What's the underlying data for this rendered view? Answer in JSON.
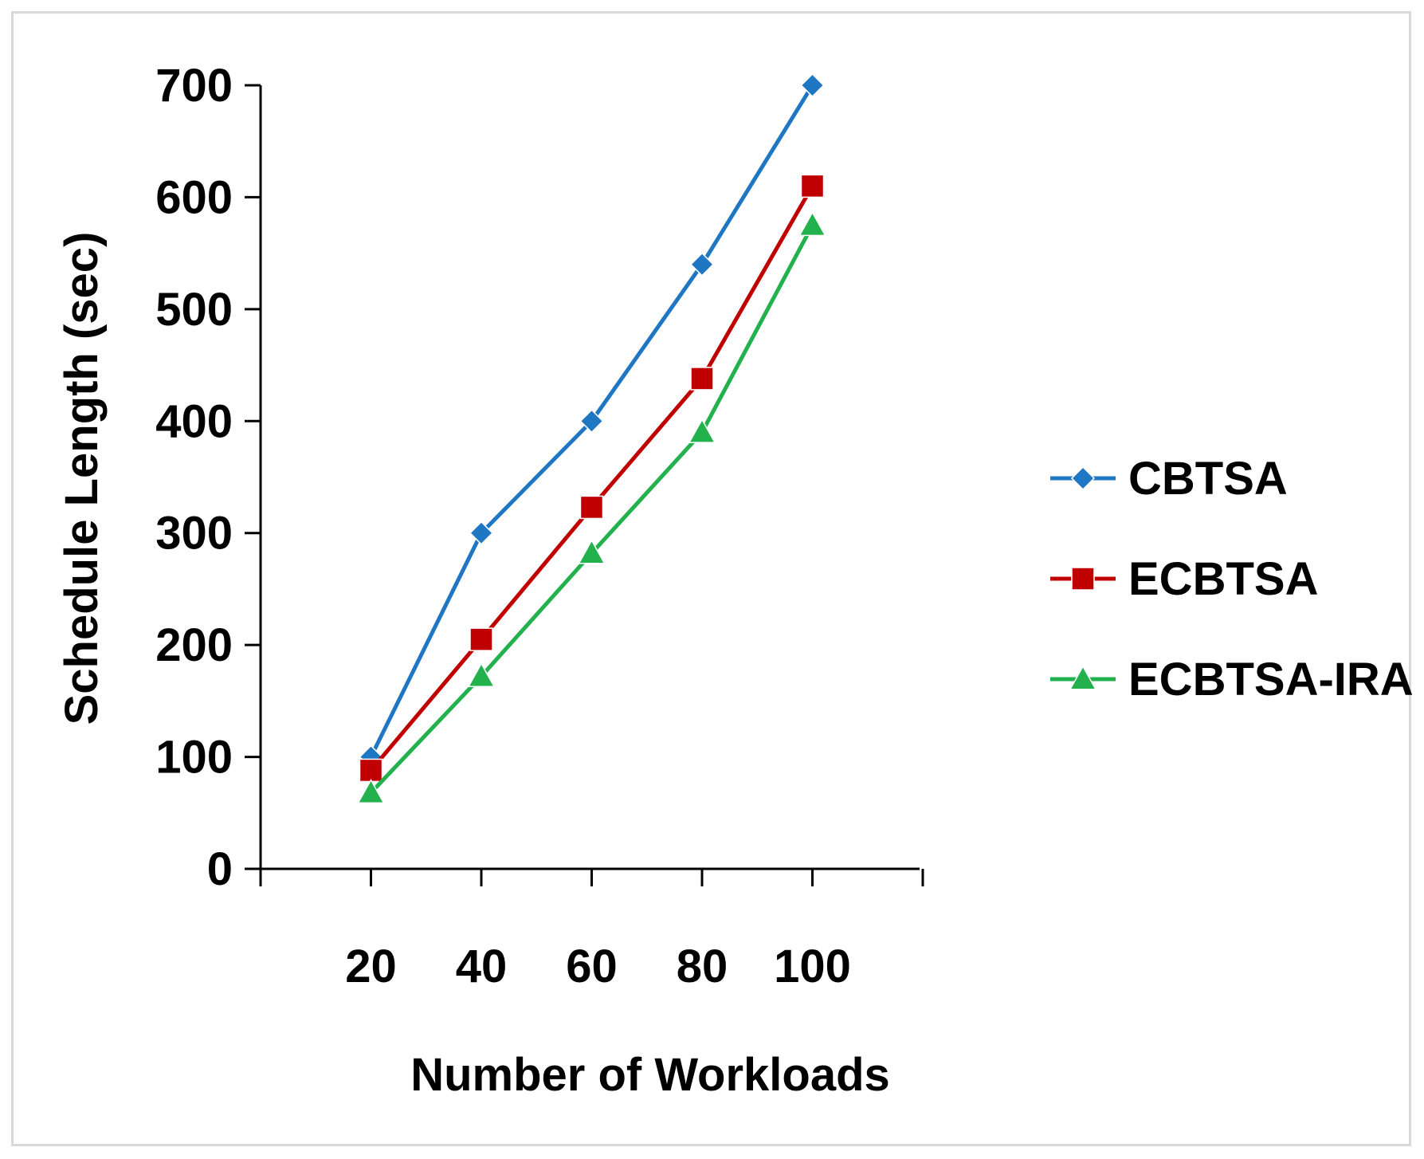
{
  "chart_data": {
    "type": "line",
    "title": "",
    "xlabel": "Number of Workloads",
    "ylabel": "Schedule Length (sec)",
    "categories": [
      "20",
      "40",
      "60",
      "80",
      "100"
    ],
    "ylim": [
      0,
      700
    ],
    "yticks": [
      0,
      100,
      200,
      300,
      400,
      500,
      600,
      700
    ],
    "grid": false,
    "legend_position": "right",
    "series": [
      {
        "name": "CBTSA",
        "values": [
          100,
          300,
          400,
          540,
          700
        ],
        "color": "#1f77c4",
        "marker": "diamond"
      },
      {
        "name": "ECBTSA",
        "values": [
          88,
          205,
          323,
          438,
          610
        ],
        "color": "#c00000",
        "marker": "square"
      },
      {
        "name": "ECBTSA-IRA",
        "values": [
          68,
          172,
          282,
          390,
          575
        ],
        "color": "#22b14c",
        "marker": "triangle"
      }
    ]
  }
}
